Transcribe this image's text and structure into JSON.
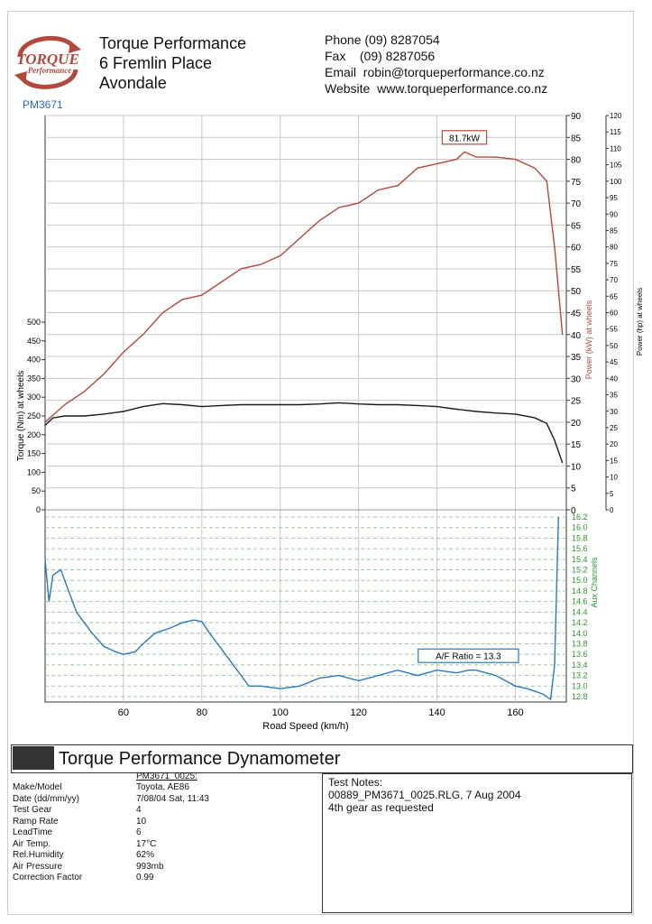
{
  "header": {
    "company": "Torque Performance",
    "address1": "6 Fremlin Place",
    "address2": "Avondale",
    "phone": "Phone (09) 8287054",
    "fax": "Fax    (09) 8287056",
    "email": "Email  robin@torqueperformance.co.nz",
    "website": "Website  www.torqueperformance.co.nz",
    "job": "PM3671",
    "logo_line1": "TORQUE",
    "logo_line2": "Performance"
  },
  "colors": {
    "power": "#b04a3c",
    "torque": "#1a1a1a",
    "afr": "#2a7ab8",
    "aux_axis": "#2a9a2a",
    "grid": "#c8c8c8"
  },
  "chart_data": {
    "type": "line",
    "xlabel": "Road Speed (km/h)",
    "xticks": [
      60,
      80,
      100,
      120,
      140,
      160
    ],
    "xlim": [
      40,
      173
    ],
    "torque_axis": {
      "label": "Torque (Nm) at wheels",
      "ticks": [
        0,
        50,
        100,
        150,
        200,
        250,
        300,
        350,
        400,
        450,
        500
      ],
      "ylim": [
        0,
        500
      ]
    },
    "power_kw_axis": {
      "label": "Power (kW) at wheels",
      "ticks": [
        0,
        5,
        10,
        15,
        20,
        25,
        30,
        35,
        40,
        45,
        50,
        55,
        60,
        65,
        70,
        75,
        80,
        85,
        90
      ],
      "ylim": [
        0,
        90
      ]
    },
    "power_hp_axis": {
      "label": "Power (hp) at wheels",
      "ticks": [
        0,
        5,
        10,
        15,
        20,
        25,
        30,
        35,
        40,
        45,
        50,
        55,
        60,
        65,
        70,
        75,
        80,
        85,
        90,
        95,
        100,
        105,
        110,
        115,
        120
      ]
    },
    "aux_axis": {
      "label": "Aux Channels",
      "ticks": [
        "12.8",
        "13.0",
        "13.2",
        "13.4",
        "13.6",
        "13.8",
        "14.0",
        "14.2",
        "14.4",
        "14.6",
        "14.8",
        "15.0",
        "15.2",
        "15.4",
        "15.6",
        "15.8",
        "16.0",
        "16.2"
      ],
      "ylim": [
        12.7,
        16.3
      ]
    },
    "series": [
      {
        "name": "Power",
        "axis": "kW",
        "x": [
          40,
          45,
          50,
          55,
          60,
          65,
          70,
          75,
          80,
          85,
          90,
          95,
          100,
          105,
          110,
          115,
          120,
          125,
          130,
          135,
          140,
          145,
          147,
          150,
          155,
          160,
          165,
          168,
          170,
          172
        ],
        "y": [
          20,
          24,
          27,
          31,
          36,
          40,
          45,
          48,
          49,
          52,
          55,
          56,
          58,
          62,
          66,
          69,
          70,
          73,
          74,
          78,
          79,
          80,
          81.7,
          80.5,
          80.5,
          80,
          78,
          75,
          60,
          40
        ]
      },
      {
        "name": "Torque",
        "axis": "Nm",
        "x": [
          40,
          42,
          45,
          50,
          55,
          60,
          65,
          70,
          75,
          80,
          85,
          90,
          95,
          100,
          105,
          110,
          115,
          120,
          125,
          130,
          135,
          140,
          145,
          150,
          155,
          160,
          165,
          168,
          170,
          172
        ],
        "y": [
          225,
          245,
          250,
          250,
          255,
          262,
          275,
          283,
          280,
          275,
          278,
          280,
          280,
          280,
          280,
          282,
          285,
          282,
          280,
          280,
          278,
          275,
          268,
          262,
          258,
          255,
          245,
          230,
          185,
          125
        ]
      },
      {
        "name": "A/F Ratio",
        "axis": "aux",
        "x": [
          40,
          41,
          42,
          44,
          46,
          48,
          50,
          52,
          55,
          58,
          60,
          63,
          65,
          68,
          72,
          75,
          78,
          80,
          82,
          85,
          88,
          90,
          92,
          95,
          100,
          105,
          110,
          115,
          120,
          125,
          130,
          135,
          140,
          145,
          148,
          150,
          155,
          160,
          163,
          165,
          167,
          169,
          170,
          171
        ],
        "y": [
          15.4,
          14.6,
          15.1,
          15.2,
          14.8,
          14.4,
          14.2,
          14.0,
          13.75,
          13.65,
          13.6,
          13.65,
          13.8,
          14.0,
          14.1,
          14.2,
          14.25,
          14.22,
          14.0,
          13.7,
          13.4,
          13.2,
          13.0,
          13.0,
          12.95,
          13.0,
          13.15,
          13.2,
          13.1,
          13.2,
          13.3,
          13.2,
          13.3,
          13.25,
          13.3,
          13.3,
          13.2,
          13.0,
          12.95,
          12.9,
          12.85,
          12.75,
          13.4,
          16.2
        ]
      }
    ],
    "annotations": [
      {
        "text": "81.7kW",
        "x": 147,
        "y": 81.7,
        "axis": "kW",
        "color": "#b04a3c"
      },
      {
        "text": "A/F Ratio = 13.3",
        "x": 148,
        "y": 13.3,
        "axis": "aux",
        "color": "#2a7ab8"
      }
    ]
  },
  "footer": {
    "title": "Torque Performance Dynamometer",
    "run_id": "PM3671_0025:",
    "rows": [
      {
        "k": "Make/Model",
        "v": "Toyota, AE86"
      },
      {
        "k": "Date (dd/mm/yy)",
        "v": "7/08/04 Sat, 11:43"
      },
      {
        "k": "Test Gear",
        "v": "4"
      },
      {
        "k": "Ramp Rate",
        "v": "10"
      },
      {
        "k": "LeadTime",
        "v": "6"
      },
      {
        "k": "Air Temp.",
        "v": "17°C"
      },
      {
        "k": "Rel.Humidity",
        "v": "62%"
      },
      {
        "k": "Air Pressure",
        "v": "993mb"
      },
      {
        "k": "Correction Factor",
        "v": "0.99"
      }
    ],
    "notes_title": "Test Notes:",
    "notes_line1": "00889_PM3671_0025.RLG, 7 Aug 2004",
    "notes_line2": "4th gear as requested"
  }
}
